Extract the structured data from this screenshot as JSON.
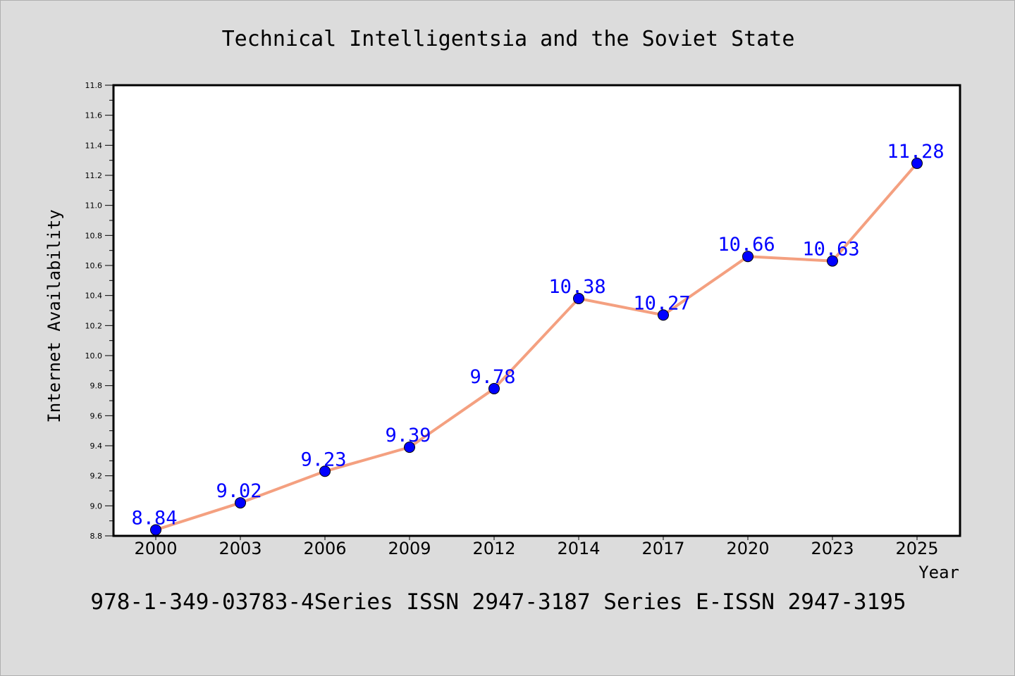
{
  "chart_data": {
    "type": "line",
    "title": "Technical Intelligentsia and the Soviet State",
    "xlabel": "Year",
    "ylabel": "Internet Availability",
    "categories": [
      "2000",
      "2003",
      "2006",
      "2009",
      "2012",
      "2014",
      "2017",
      "2020",
      "2023",
      "2025"
    ],
    "values": [
      8.84,
      9.02,
      9.23,
      9.39,
      9.78,
      10.38,
      10.27,
      10.66,
      10.63,
      11.28
    ],
    "data_labels": [
      "8.84",
      "9.02",
      "9.23",
      "9.39",
      "9.78",
      "10.38",
      "10.27",
      "10.66",
      "10.63",
      "11.28"
    ],
    "ylim": [
      8.8,
      11.8
    ],
    "yticks": [
      "8.8",
      "9.0",
      "9.2",
      "9.4",
      "9.6",
      "9.8",
      "10.0",
      "10.2",
      "10.4",
      "10.6",
      "10.8",
      "11.0",
      "11.2",
      "11.4",
      "11.6",
      "11.8"
    ],
    "grid": false,
    "line_color": "#f4a080",
    "marker_color": "#0000ff",
    "label_color": "#0000ff"
  },
  "footer": "978-1-349-03783-4Series ISSN 2947-3187 Series E-ISSN 2947-3195"
}
